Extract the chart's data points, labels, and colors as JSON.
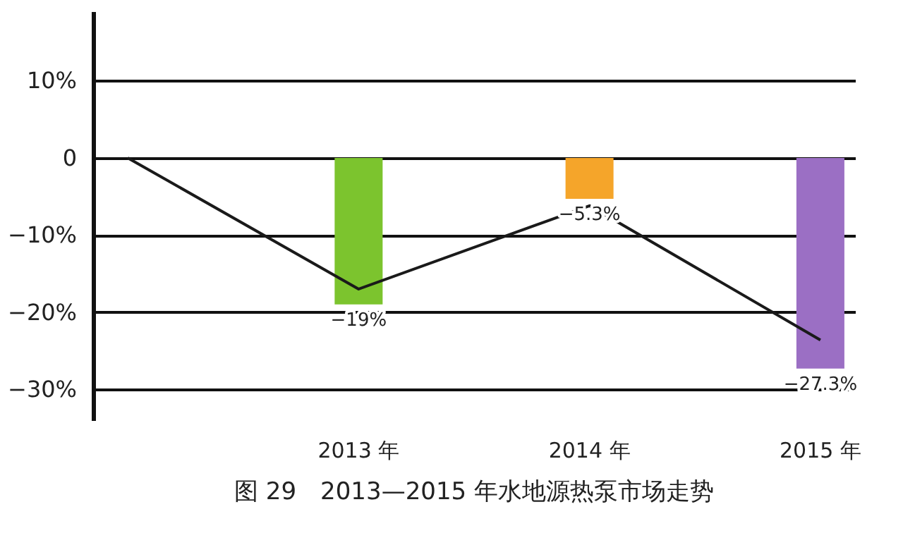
{
  "chart_data": {
    "type": "bar",
    "title": "图 29　2013—2015 年水地源热泵市场走势",
    "categories": [
      null,
      "2013 年",
      "2014 年",
      "2015 年"
    ],
    "series": [
      {
        "values": [
          null,
          -19,
          -5.3,
          -27.3
        ],
        "colors": [
          null,
          "#7cc42e",
          "#f5a52a",
          "#9b6fc4"
        ],
        "value_labels": [
          null,
          "−19%",
          "−5.3%",
          "−27.3%"
        ]
      },
      {
        "type": "line",
        "color": "#1a1a1a",
        "values": [
          0,
          -17,
          -6.2,
          -23.6
        ]
      }
    ],
    "ylim": [
      -34,
      19
    ],
    "yticks": [
      {
        "value": 10,
        "label": "10%"
      },
      0,
      {
        "value": -10,
        "label": "−10%"
      },
      {
        "value": -20,
        "label": "−20%"
      },
      {
        "value": -30,
        "label": "−30%"
      }
    ],
    "grid": "y"
  }
}
